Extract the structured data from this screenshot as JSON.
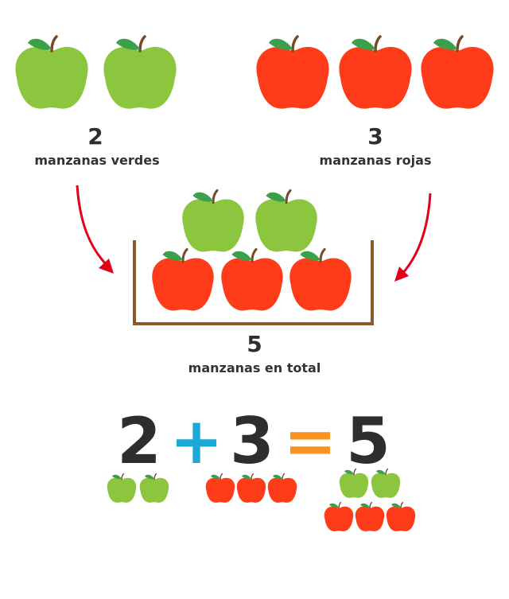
{
  "colors": {
    "green_apple": "#8cc63f",
    "red_apple": "#ff3c1a",
    "leaf": "#3aa14a",
    "stem": "#7a4a26",
    "arrow": "#e3001b",
    "basket": "#8b5a2b",
    "plus": "#1ba7d7",
    "equals": "#f7931e",
    "text": "#2e2e2e"
  },
  "green_group": {
    "count": "2",
    "label": "manzanas verdes",
    "apples": 2
  },
  "red_group": {
    "count": "3",
    "label": "manzanas rojas",
    "apples": 3
  },
  "total_group": {
    "count": "5",
    "label": "manzanas en total",
    "green_apples": 2,
    "red_apples": 3
  },
  "equation": {
    "a": "2",
    "plus": "+",
    "b": "3",
    "equals": "=",
    "result": "5"
  },
  "icons": [
    "apple-icon",
    "arrow-icon",
    "basket-icon"
  ]
}
